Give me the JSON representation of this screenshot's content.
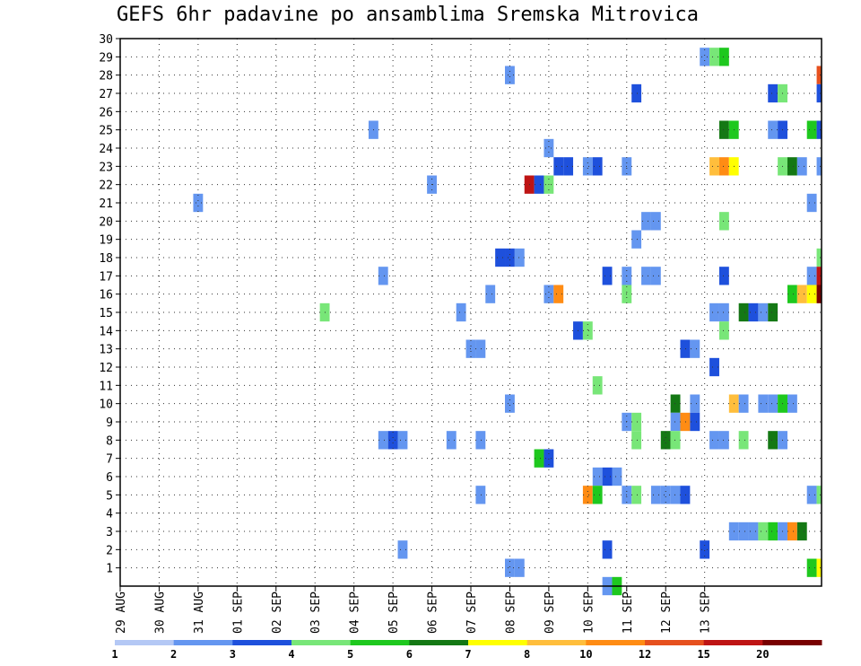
{
  "chart_data": {
    "type": "heatmap",
    "title": "GEFS 6hr padavine po ansamblima Sremska Mitrovica",
    "xlabel": "",
    "ylabel": "",
    "x_tick_labels": [
      "29 AUG",
      "30 AUG",
      "31 AUG",
      "01 SEP",
      "02 SEP",
      "03 SEP",
      "04 SEP",
      "05 SEP",
      "06 SEP",
      "07 SEP",
      "08 SEP",
      "09 SEP",
      "10 SEP",
      "11 SEP",
      "12 SEP",
      "13 SEP"
    ],
    "y_range": [
      1,
      30
    ],
    "grid": true,
    "colorbar": {
      "labels": [
        "1",
        "2",
        "3",
        "4",
        "5",
        "6",
        "7",
        "8",
        "10",
        "12",
        "15",
        "20"
      ],
      "colors": [
        "#b4c8f5",
        "#6496f0",
        "#1e50dc",
        "#78e678",
        "#1ec81e",
        "#147814",
        "#ffff00",
        "#ffbe3c",
        "#ff8c14",
        "#e6501e",
        "#be1414",
        "#780000"
      ]
    },
    "x_unit": "6-hour steps from 29 AUG 00Z",
    "y_unit": "ensemble member",
    "cells": [
      [
        60,
        29,
        1
      ],
      [
        61,
        29,
        3
      ],
      [
        62,
        29,
        4
      ],
      [
        40,
        28,
        1
      ],
      [
        72,
        28,
        9
      ],
      [
        53,
        27,
        2
      ],
      [
        67,
        27,
        2
      ],
      [
        68,
        27,
        3
      ],
      [
        72,
        27,
        2
      ],
      [
        26,
        25,
        1
      ],
      [
        62,
        25,
        5
      ],
      [
        63,
        25,
        4
      ],
      [
        67,
        25,
        1
      ],
      [
        68,
        25,
        2
      ],
      [
        71,
        25,
        4
      ],
      [
        72,
        25,
        2
      ],
      [
        44,
        24,
        1
      ],
      [
        45,
        23,
        2
      ],
      [
        46,
        23,
        2
      ],
      [
        48,
        23,
        1
      ],
      [
        49,
        23,
        2
      ],
      [
        52,
        23,
        1
      ],
      [
        61,
        23,
        7
      ],
      [
        62,
        23,
        8
      ],
      [
        63,
        23,
        6
      ],
      [
        68,
        23,
        3
      ],
      [
        69,
        23,
        5
      ],
      [
        70,
        23,
        1
      ],
      [
        72,
        23,
        1
      ],
      [
        32,
        22,
        1
      ],
      [
        42,
        22,
        10
      ],
      [
        43,
        22,
        2
      ],
      [
        44,
        22,
        3
      ],
      [
        8,
        21,
        1
      ],
      [
        71,
        21,
        1
      ],
      [
        54,
        20,
        1
      ],
      [
        55,
        20,
        1
      ],
      [
        62,
        20,
        3
      ],
      [
        53,
        19,
        1
      ],
      [
        39,
        18,
        2
      ],
      [
        40,
        18,
        2
      ],
      [
        41,
        18,
        1
      ],
      [
        72,
        18,
        3
      ],
      [
        27,
        17,
        1
      ],
      [
        50,
        17,
        2
      ],
      [
        52,
        17,
        1
      ],
      [
        54,
        17,
        1
      ],
      [
        55,
        17,
        1
      ],
      [
        62,
        17,
        2
      ],
      [
        71,
        17,
        1
      ],
      [
        72,
        17,
        10
      ],
      [
        38,
        16,
        1
      ],
      [
        44,
        16,
        1
      ],
      [
        45,
        16,
        8
      ],
      [
        52,
        16,
        3
      ],
      [
        69,
        16,
        4
      ],
      [
        70,
        16,
        7
      ],
      [
        71,
        16,
        6
      ],
      [
        72,
        16,
        11
      ],
      [
        21,
        15,
        3
      ],
      [
        35,
        15,
        1
      ],
      [
        61,
        15,
        1
      ],
      [
        62,
        15,
        1
      ],
      [
        64,
        15,
        5
      ],
      [
        65,
        15,
        2
      ],
      [
        66,
        15,
        1
      ],
      [
        67,
        15,
        5
      ],
      [
        47,
        14,
        2
      ],
      [
        48,
        14,
        3
      ],
      [
        62,
        14,
        3
      ],
      [
        36,
        13,
        1
      ],
      [
        37,
        13,
        1
      ],
      [
        58,
        13,
        2
      ],
      [
        59,
        13,
        1
      ],
      [
        61,
        12,
        2
      ],
      [
        49,
        11,
        3
      ],
      [
        40,
        10,
        1
      ],
      [
        57,
        10,
        5
      ],
      [
        59,
        10,
        1
      ],
      [
        63,
        10,
        7
      ],
      [
        64,
        10,
        1
      ],
      [
        66,
        10,
        1
      ],
      [
        67,
        10,
        1
      ],
      [
        68,
        10,
        4
      ],
      [
        69,
        10,
        1
      ],
      [
        52,
        9,
        1
      ],
      [
        53,
        9,
        3
      ],
      [
        57,
        9,
        1
      ],
      [
        58,
        9,
        8
      ],
      [
        59,
        9,
        2
      ],
      [
        27,
        8,
        1
      ],
      [
        28,
        8,
        2
      ],
      [
        29,
        8,
        1
      ],
      [
        34,
        8,
        1
      ],
      [
        37,
        8,
        1
      ],
      [
        53,
        8,
        3
      ],
      [
        56,
        8,
        5
      ],
      [
        57,
        8,
        3
      ],
      [
        61,
        8,
        1
      ],
      [
        62,
        8,
        1
      ],
      [
        64,
        8,
        3
      ],
      [
        67,
        8,
        5
      ],
      [
        68,
        8,
        1
      ],
      [
        43,
        7,
        4
      ],
      [
        44,
        7,
        2
      ],
      [
        49,
        6,
        1
      ],
      [
        50,
        6,
        2
      ],
      [
        51,
        6,
        1
      ],
      [
        37,
        5,
        1
      ],
      [
        48,
        5,
        8
      ],
      [
        49,
        5,
        4
      ],
      [
        52,
        5,
        1
      ],
      [
        53,
        5,
        3
      ],
      [
        55,
        5,
        1
      ],
      [
        56,
        5,
        1
      ],
      [
        57,
        5,
        1
      ],
      [
        58,
        5,
        2
      ],
      [
        71,
        5,
        1
      ],
      [
        72,
        5,
        3
      ],
      [
        63,
        3,
        1
      ],
      [
        64,
        3,
        1
      ],
      [
        65,
        3,
        1
      ],
      [
        66,
        3,
        3
      ],
      [
        67,
        3,
        4
      ],
      [
        68,
        3,
        1
      ],
      [
        69,
        3,
        8
      ],
      [
        70,
        3,
        5
      ],
      [
        29,
        2,
        1
      ],
      [
        50,
        2,
        2
      ],
      [
        60,
        2,
        2
      ],
      [
        40,
        1,
        1
      ],
      [
        41,
        1,
        1
      ],
      [
        71,
        1,
        4
      ],
      [
        72,
        1,
        6
      ],
      [
        50,
        0,
        1
      ],
      [
        51,
        0,
        4
      ]
    ]
  }
}
